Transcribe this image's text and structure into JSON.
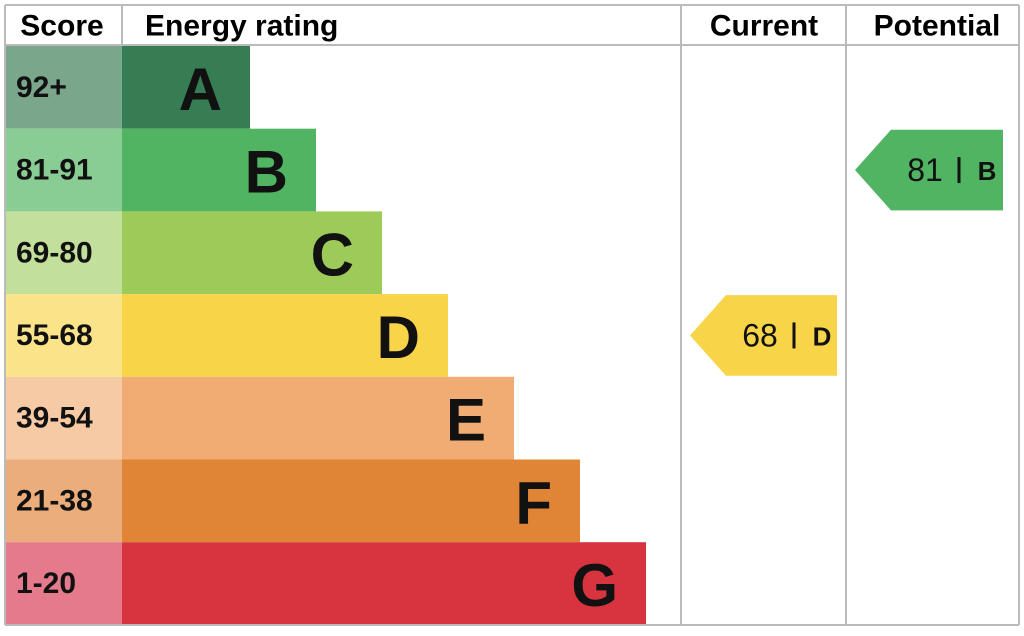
{
  "header": {
    "score": "Score",
    "rating": "Energy rating",
    "current": "Current",
    "potential": "Potential"
  },
  "bands": [
    {
      "score": "92+",
      "letter": "A",
      "color": "#367d54",
      "cell_color": "#7aa68c"
    },
    {
      "score": "81-91",
      "letter": "B",
      "color": "#50b463",
      "cell_color": "#89cc94"
    },
    {
      "score": "69-80",
      "letter": "C",
      "color": "#9ccb59",
      "cell_color": "#c3df9c"
    },
    {
      "score": "55-68",
      "letter": "D",
      "color": "#f8d448",
      "cell_color": "#fbe389"
    },
    {
      "score": "39-54",
      "letter": "E",
      "color": "#f0ac72",
      "cell_color": "#f5caa5"
    },
    {
      "score": "21-38",
      "letter": "F",
      "color": "#e08436",
      "cell_color": "#eaad7b"
    },
    {
      "score": "1-20",
      "letter": "G",
      "color": "#d8343f",
      "cell_color": "#e47a8b"
    }
  ],
  "current": {
    "value": 68,
    "rating": "D"
  },
  "potential": {
    "value": 81,
    "rating": "B"
  }
}
